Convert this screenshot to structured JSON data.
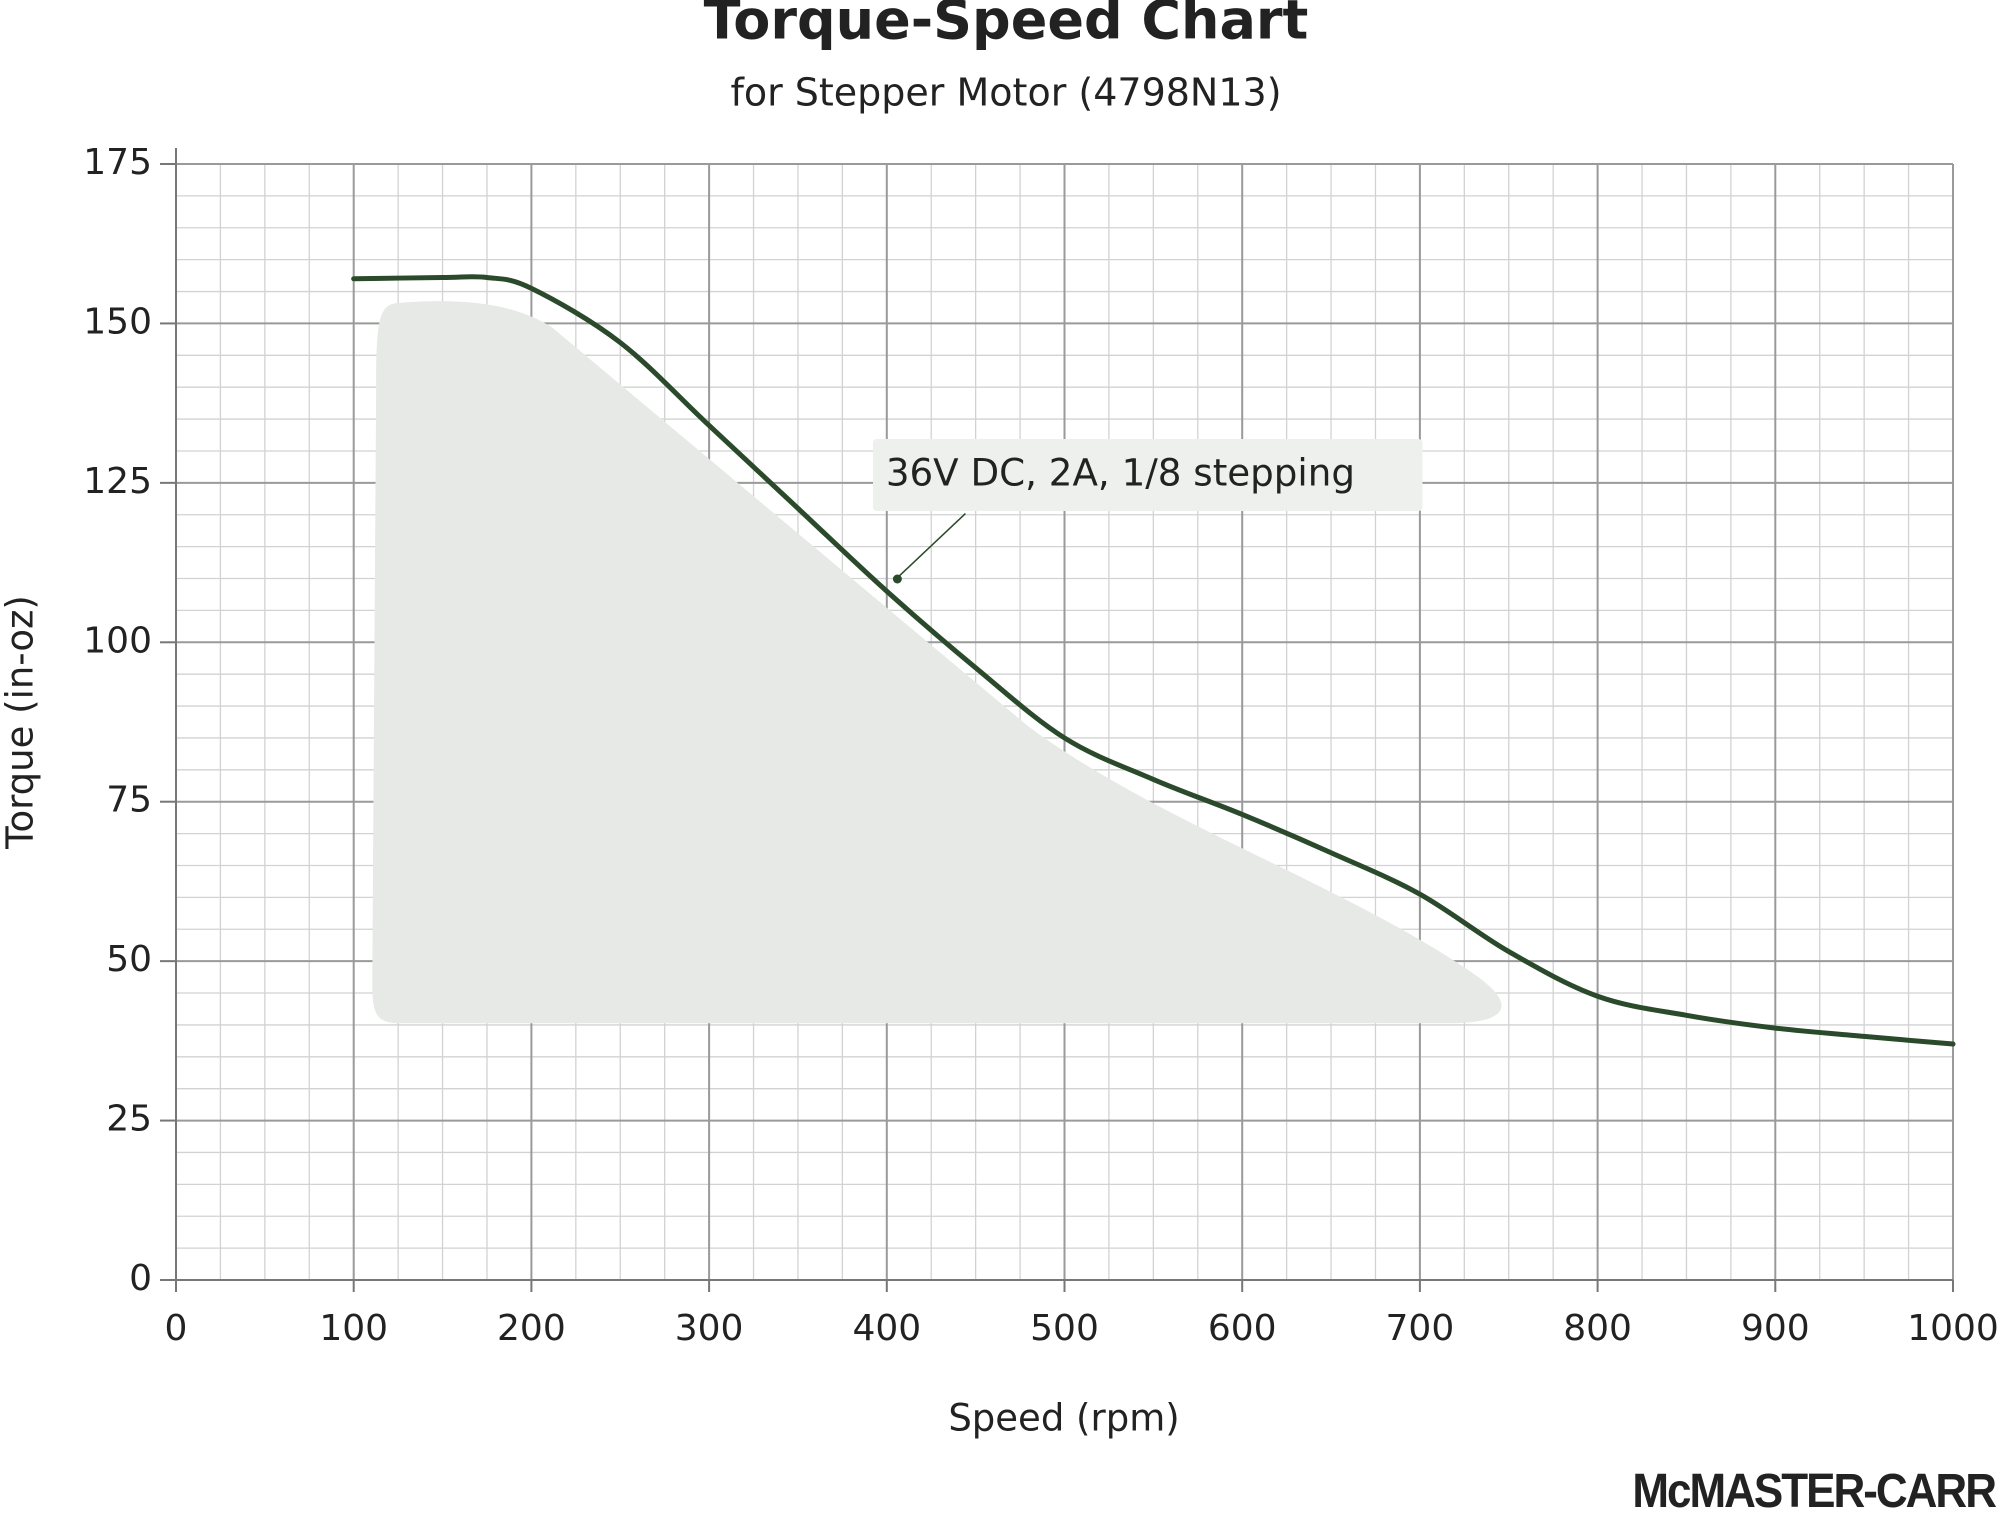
{
  "chart_data": {
    "type": "line",
    "title": "Torque-Speed Chart",
    "subtitle": "for Stepper Motor (4798N13)",
    "x_label": "Speed (rpm)",
    "y_label": "Torque (in-oz)",
    "annotation": "36V DC, 2A, 1/8 stepping",
    "logo": "McMASTER-CARR",
    "x": [
      100,
      150,
      175,
      200,
      250,
      300,
      350,
      400,
      450,
      500,
      550,
      600,
      650,
      700,
      750,
      800,
      850,
      900,
      950,
      1000
    ],
    "series": [
      {
        "color": "#2b4a2b",
        "values": [
          157,
          157.2,
          157.2,
          155.5,
          147,
          134,
          121,
          108,
          96,
          85,
          78.5,
          73,
          67,
          60.5,
          51.5,
          44.5,
          41.5,
          39.5,
          38.2,
          37
        ]
      }
    ],
    "xlim": [
      0,
      1000
    ],
    "ylim": [
      0,
      175
    ],
    "xticks": [
      0,
      100,
      200,
      300,
      400,
      500,
      600,
      700,
      800,
      900,
      1000
    ],
    "yticks": [
      0,
      25,
      50,
      75,
      100,
      125,
      150,
      175
    ],
    "grid": true
  }
}
